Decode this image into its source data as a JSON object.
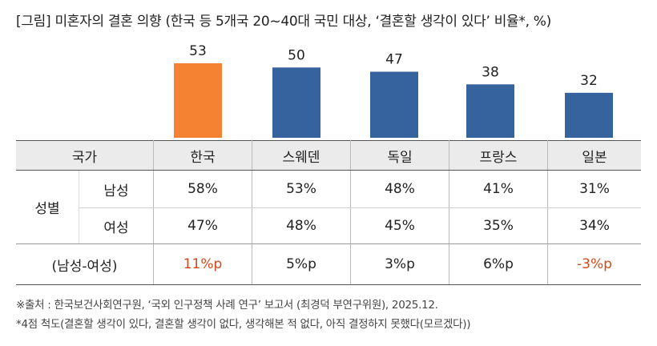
{
  "title": "[그림] 미혼자의 결혼 의향 (한국 등 5개국 20~40대 국민 대상, ‘결혼할 생각이 있다’ 비율*, %)",
  "colors": {
    "highlight": "#f58233",
    "bar": "#36629e",
    "negative": "#d2491a"
  },
  "chart_data": {
    "type": "bar",
    "categories": [
      "한국",
      "스웨덴",
      "독일",
      "프랑스",
      "일본"
    ],
    "values": [
      53,
      50,
      47,
      38,
      32
    ],
    "title": "",
    "xlabel": "",
    "ylabel": "",
    "ylim": [
      0,
      53
    ],
    "grid": false,
    "legend": "none"
  },
  "table": {
    "header_label": "국가",
    "countries": [
      "한국",
      "스웨덴",
      "독일",
      "프랑스",
      "일본"
    ],
    "group_label": "성별",
    "rows": [
      {
        "label": "남성",
        "values": [
          "58%",
          "53%",
          "48%",
          "41%",
          "31%"
        ]
      },
      {
        "label": "여성",
        "values": [
          "47%",
          "48%",
          "45%",
          "35%",
          "34%"
        ]
      }
    ],
    "diff": {
      "label": "(남성-여성)",
      "values": [
        "11%p",
        "5%p",
        "3%p",
        "6%p",
        "-3%p"
      ]
    }
  },
  "footnotes": [
    "※출처 : 한국보건사회연구원, ‘국외 인구정책 사례 연구’ 보고서 (최경덕 부연구위원), 2025.12.",
    "*4점 척도(결혼할 생각이 있다, 결혼할 생각이 없다, 생각해본 적 없다, 아직 결정하지 못했다(모르겠다))"
  ]
}
